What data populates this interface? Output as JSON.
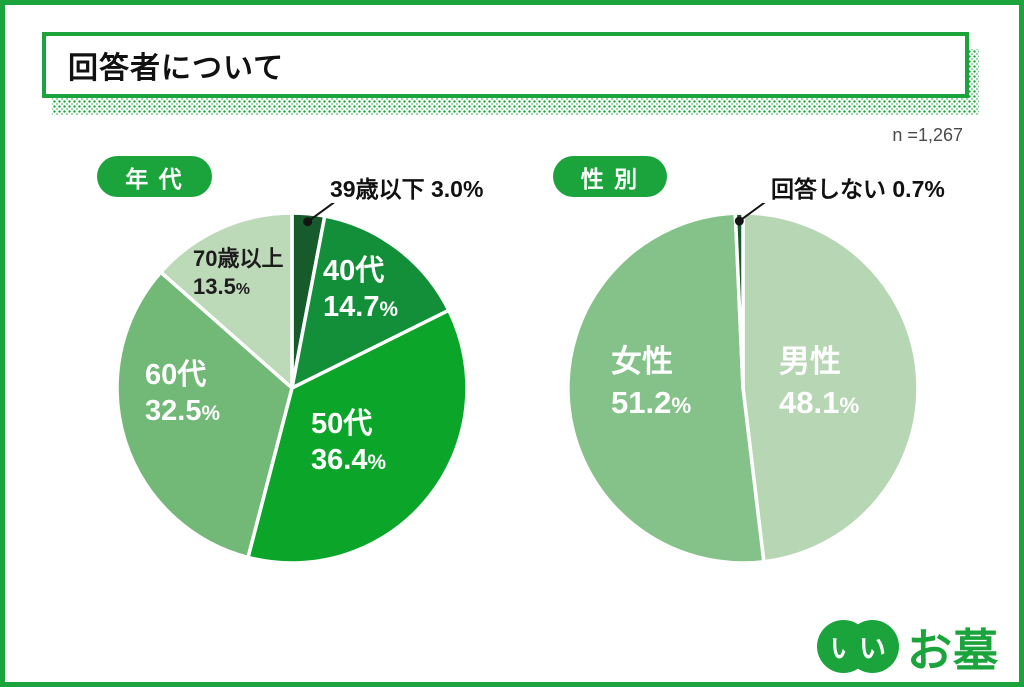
{
  "theme": {
    "accent": "#1ba43c",
    "dark_green": "#175a2b",
    "title_color": "#111111",
    "note_color": "#4a4a4a",
    "callout_color": "#141414",
    "slice_gap_color": "#ffffff"
  },
  "header": {
    "title": "回答者について",
    "sample_note": "n =1,267"
  },
  "percent_sign": "%",
  "chart_data": [
    {
      "type": "pie",
      "title": "年 代",
      "legend_position": "none",
      "start_angle_deg": 0,
      "direction": "clockwise",
      "slices": [
        {
          "label": "39歳以下",
          "value": 3.0,
          "value_text": "3.0",
          "color": "#175a2b",
          "callout": true,
          "annotation": "39歳以下 3.0%"
        },
        {
          "label": "40代",
          "value": 14.7,
          "value_text": "14.7",
          "color": "#128f38"
        },
        {
          "label": "50代",
          "value": 36.4,
          "value_text": "36.4",
          "color": "#0ba629"
        },
        {
          "label": "60代",
          "value": 32.5,
          "value_text": "32.5",
          "color": "#72b877"
        },
        {
          "label": "70歳以上",
          "value": 13.5,
          "value_text": "13.5",
          "color": "#bcd9b8"
        }
      ]
    },
    {
      "type": "pie",
      "title": "性 別",
      "legend_position": "none",
      "start_angle_deg": 0,
      "direction": "clockwise",
      "slices": [
        {
          "label": "男性",
          "value": 48.1,
          "value_text": "48.1",
          "color": "#b7d6b3"
        },
        {
          "label": "女性",
          "value": 51.2,
          "value_text": "51.2",
          "color": "#85c289"
        },
        {
          "label": "回答しない",
          "value": 0.7,
          "value_text": "0.7",
          "color": "#175a2b",
          "callout": true,
          "annotation": "回答しない 0.7%"
        }
      ]
    }
  ],
  "logo": {
    "circle_chars": [
      "い",
      "い"
    ],
    "name": "お墓"
  }
}
